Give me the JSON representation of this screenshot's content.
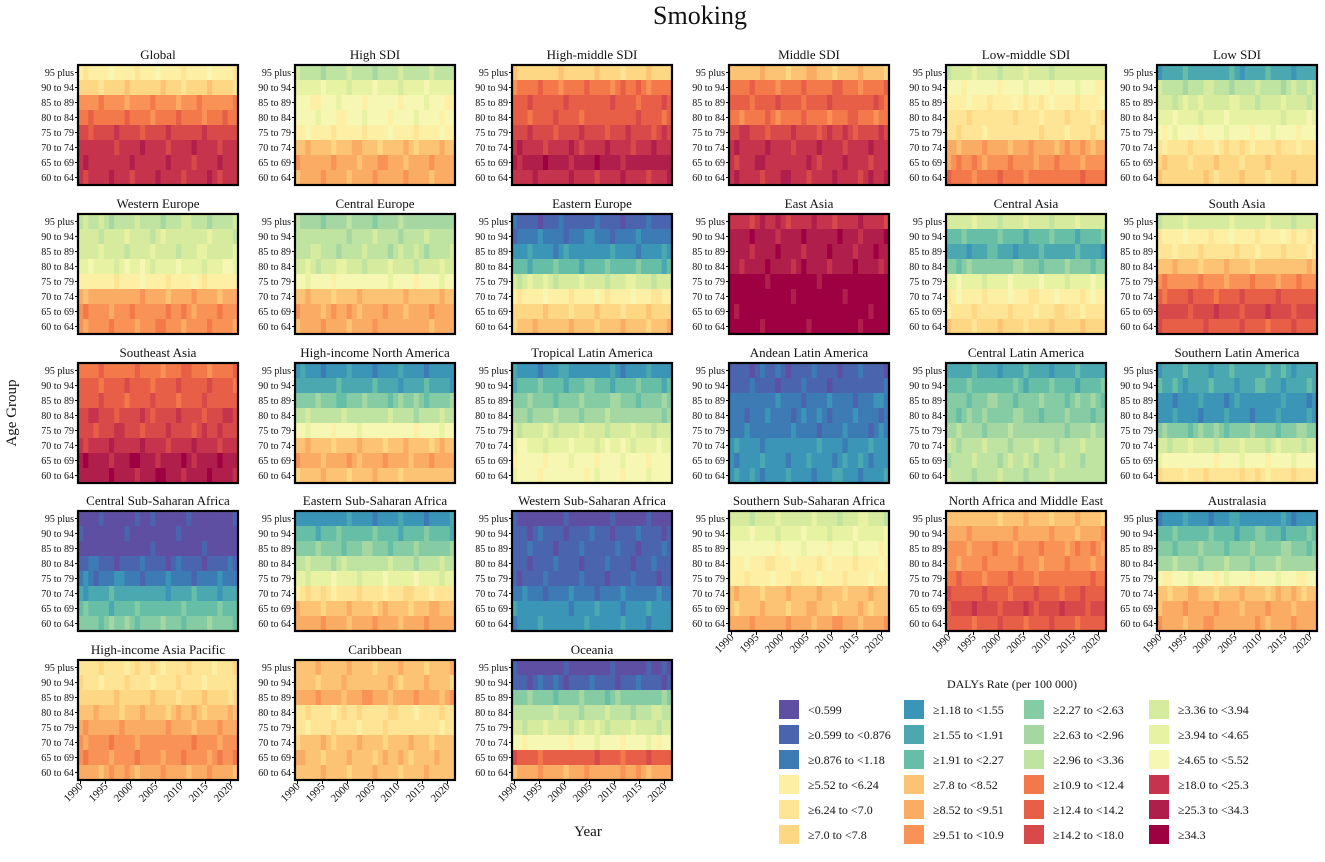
{
  "chart_data": {
    "type": "heatmap",
    "title": "Smoking",
    "ylabel": "Age Group",
    "xlabel": "Year",
    "x_ticks": [
      "1990",
      "1995",
      "2000",
      "2005",
      "2010",
      "2015",
      "2020"
    ],
    "x_range": [
      1990,
      2021
    ],
    "age_groups": [
      "95 plus",
      "90 to 94",
      "85 to 89",
      "80 to 84",
      "75 to 79",
      "70 to 74",
      "65 to 69",
      "60 to 64"
    ],
    "legend_title": "DALYs Rate (per 100 000)",
    "legend": [
      {
        "label": "<0.599",
        "color": "#5e4fa2"
      },
      {
        "label": "≥0.599 to <0.876",
        "color": "#4a64ad"
      },
      {
        "label": "≥0.876 to <1.18",
        "color": "#3d7bb5"
      },
      {
        "label": "≥1.18 to <1.55",
        "color": "#3b95b7"
      },
      {
        "label": "≥1.55 to <1.91",
        "color": "#4ba8b0"
      },
      {
        "label": "≥1.91 to <2.27",
        "color": "#66bea6"
      },
      {
        "label": "≥2.27 to <2.63",
        "color": "#85cba4"
      },
      {
        "label": "≥2.63 to <2.96",
        "color": "#a4d7a2"
      },
      {
        "label": "≥2.96 to <3.36",
        "color": "#bfe3a0"
      },
      {
        "label": "≥3.36 to <3.94",
        "color": "#d6eb9d"
      },
      {
        "label": "≥3.94 to <4.65",
        "color": "#e7f2a3"
      },
      {
        "label": "≥4.65 to <5.52",
        "color": "#f5f7b3"
      },
      {
        "label": "≥5.52 to <6.24",
        "color": "#fdf0a4"
      },
      {
        "label": "≥6.24 to <7.0",
        "color": "#fee596"
      },
      {
        "label": "≥7.0 to <7.8",
        "color": "#fed785"
      },
      {
        "label": "≥7.8 to <8.52",
        "color": "#fdc374"
      },
      {
        "label": "≥8.52 to <9.51",
        "color": "#fbac64"
      },
      {
        "label": "≥9.51 to <10.9",
        "color": "#f89256"
      },
      {
        "label": "≥10.9 to <12.4",
        "color": "#f3784a"
      },
      {
        "label": "≥12.4 to <14.2",
        "color": "#e75f47"
      },
      {
        "label": "≥14.2 to <18.0",
        "color": "#d84a4a"
      },
      {
        "label": "≥18.0 to <25.3",
        "color": "#c5344c"
      },
      {
        "label": "≥25.3 to <34.3",
        "color": "#b01f4c"
      },
      {
        "label": "≥34.3",
        "color": "#9e0142"
      }
    ],
    "panels": [
      {
        "name": "Global",
        "levels": [
          12,
          14,
          17,
          18,
          20,
          21,
          21,
          21
        ]
      },
      {
        "name": "High SDI",
        "levels": [
          8,
          10,
          11,
          11,
          12,
          15,
          16,
          16
        ]
      },
      {
        "name": "High-middle SDI",
        "levels": [
          14,
          18,
          19,
          19,
          20,
          21,
          22,
          21
        ]
      },
      {
        "name": "Middle SDI",
        "levels": [
          15,
          18,
          19,
          18,
          20,
          21,
          21,
          21
        ]
      },
      {
        "name": "Low-middle SDI",
        "levels": [
          9,
          11,
          12,
          13,
          13,
          16,
          17,
          18
        ]
      },
      {
        "name": "Low SDI",
        "levels": [
          4,
          8,
          9,
          10,
          11,
          13,
          14,
          14
        ]
      },
      {
        "name": "Western Europe",
        "levels": [
          8,
          9,
          9,
          10,
          12,
          16,
          17,
          17
        ]
      },
      {
        "name": "Central Europe",
        "levels": [
          7,
          8,
          8,
          9,
          11,
          15,
          16,
          16
        ]
      },
      {
        "name": "Eastern Europe",
        "levels": [
          1,
          2,
          3,
          5,
          9,
          12,
          14,
          15
        ]
      },
      {
        "name": "East Asia",
        "levels": [
          21,
          22,
          22,
          22,
          23,
          23,
          23,
          23
        ]
      },
      {
        "name": "Central Asia",
        "levels": [
          9,
          5,
          4,
          6,
          10,
          12,
          13,
          14
        ]
      },
      {
        "name": "South Asia",
        "levels": [
          9,
          12,
          13,
          15,
          17,
          19,
          20,
          19
        ]
      },
      {
        "name": "Southeast Asia",
        "levels": [
          18,
          19,
          19,
          20,
          20,
          21,
          22,
          22
        ]
      },
      {
        "name": "High-income North America",
        "levels": [
          3,
          4,
          6,
          8,
          11,
          15,
          16,
          15
        ]
      },
      {
        "name": "Tropical Latin America",
        "levels": [
          3,
          5,
          6,
          7,
          9,
          10,
          11,
          11
        ]
      },
      {
        "name": "Andean Latin America",
        "levels": [
          1,
          1,
          2,
          2,
          2,
          3,
          3,
          3
        ]
      },
      {
        "name": "Central Latin America",
        "levels": [
          4,
          5,
          6,
          6,
          7,
          8,
          8,
          8
        ]
      },
      {
        "name": "Southern Latin America",
        "levels": [
          4,
          4,
          3,
          3,
          6,
          9,
          11,
          13
        ]
      },
      {
        "name": "Central Sub-Saharan Africa",
        "levels": [
          0,
          0,
          0,
          1,
          2,
          4,
          5,
          6
        ]
      },
      {
        "name": "Eastern Sub-Saharan Africa",
        "levels": [
          3,
          5,
          6,
          8,
          10,
          13,
          15,
          16
        ]
      },
      {
        "name": "Western Sub-Saharan Africa",
        "levels": [
          0,
          1,
          1,
          1,
          1,
          2,
          3,
          3
        ]
      },
      {
        "name": "Southern Sub-Saharan Africa",
        "levels": [
          9,
          10,
          11,
          12,
          12,
          15,
          15,
          16
        ]
      },
      {
        "name": "North Africa and Middle East",
        "levels": [
          15,
          16,
          17,
          17,
          18,
          19,
          20,
          19
        ]
      },
      {
        "name": "Australasia",
        "levels": [
          3,
          5,
          6,
          7,
          11,
          15,
          16,
          16
        ]
      },
      {
        "name": "High-income Asia Pacific",
        "levels": [
          13,
          13,
          14,
          15,
          16,
          17,
          17,
          16
        ]
      },
      {
        "name": "Caribbean",
        "levels": [
          15,
          15,
          16,
          13,
          13,
          15,
          15,
          15
        ]
      },
      {
        "name": "Oceania",
        "levels": [
          0,
          1,
          6,
          8,
          9,
          11,
          19,
          16
        ]
      }
    ]
  }
}
